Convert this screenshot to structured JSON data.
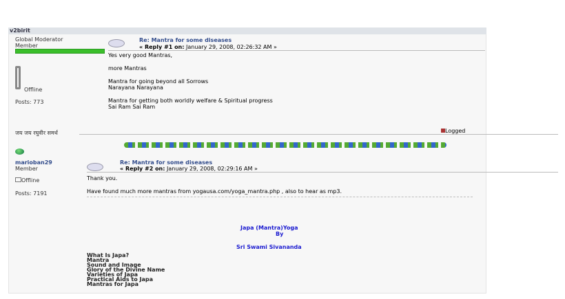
{
  "posts": [
    {
      "author": "v2birit",
      "rank": "Global Moderator",
      "group": "Member",
      "status": "Offline",
      "posts": "Posts: 773",
      "subject": "Re: Mantra for some diseases",
      "reply_label": "« Reply #1 on:",
      "date": "January 29, 2008, 02:26:32 AM »",
      "body": [
        "Yes very good Mantras,",
        "more Mantras",
        "Mantra for going beyond all Sorrows",
        "Narayana Narayana",
        "Mantra for getting both worldly welfare & Spiritual progress",
        "Sai Ram Sai Ram"
      ],
      "signature": "जय जय रघुवीर समर्थ",
      "logged": "Logged"
    },
    {
      "author": "marioban29",
      "group": "Member",
      "status": "Offline",
      "posts": "Posts: 7191",
      "subject": "Re: Mantra for some diseases",
      "reply_label": "« Reply #2 on:",
      "date": "January 29, 2008, 02:29:16 AM »",
      "body": [
        "Thank you.",
        "Have found much more mantras from yogausa.com/yoga_mantra.php , also to hear as mp3."
      ],
      "book_title": "Japa (Mantra)Yoga",
      "book_by": "By",
      "book_author": "Sri Swami Sivananda",
      "toc": [
        "What Is Japa?",
        "Mantra",
        "Sound and Image",
        "Glory of the Divine Name",
        "Varieties of Japa",
        "Practical Aids to Japa",
        "Mantras for Japa"
      ]
    }
  ],
  "colors": {
    "accent": "#334d8c",
    "link": "#1a1ad0",
    "moderator_bar": "#3bbf2b"
  }
}
